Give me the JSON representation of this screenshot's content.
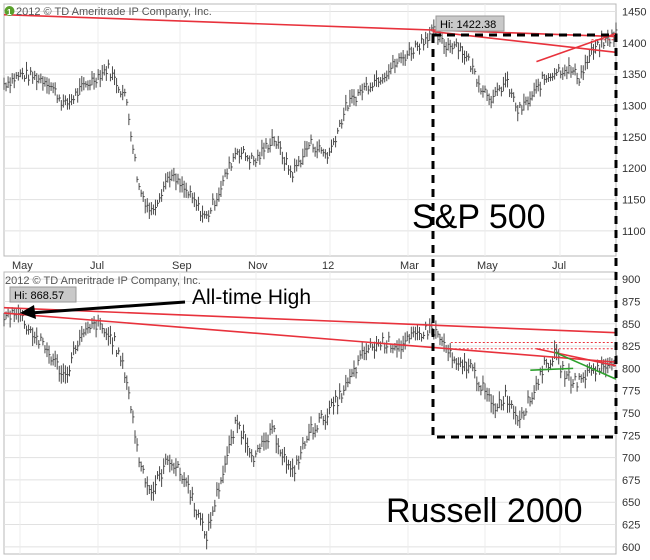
{
  "chart_data": [
    {
      "type": "ohlc",
      "series_name": "S&P 500",
      "copyright": "2012 © TD Ameritrade IP Company, Inc.",
      "hi_label": "Hi: 1422.38",
      "y_ticks": [
        1100,
        1150,
        1200,
        1250,
        1300,
        1350,
        1400,
        1450
      ],
      "ylim": [
        1060,
        1462
      ],
      "x_ticks": [
        "May",
        "Jul",
        "Sep",
        "Nov",
        "12",
        "Mar",
        "May",
        "Jul"
      ],
      "trend_lines": [
        {
          "color": "#e8323c",
          "from": [
            0,
            1445
          ],
          "to": [
            1,
            1410
          ]
        },
        {
          "color": "#e8323c",
          "from": [
            0.7,
            1418
          ],
          "to": [
            1,
            1385
          ]
        },
        {
          "color": "#e8323c",
          "from": [
            0.87,
            1370
          ],
          "to": [
            1,
            1415
          ]
        },
        {
          "color": "#e8323c",
          "style": "dotted",
          "from": [
            0.96,
            1405
          ],
          "to": [
            1,
            1405
          ]
        }
      ],
      "path": [
        [
          0.0,
          1335
        ],
        [
          0.03,
          1350
        ],
        [
          0.07,
          1340
        ],
        [
          0.1,
          1300
        ],
        [
          0.13,
          1330
        ],
        [
          0.17,
          1360
        ],
        [
          0.2,
          1310
        ],
        [
          0.22,
          1170
        ],
        [
          0.24,
          1130
        ],
        [
          0.27,
          1190
        ],
        [
          0.3,
          1160
        ],
        [
          0.33,
          1120
        ],
        [
          0.35,
          1160
        ],
        [
          0.38,
          1230
        ],
        [
          0.41,
          1210
        ],
        [
          0.44,
          1250
        ],
        [
          0.47,
          1190
        ],
        [
          0.5,
          1240
        ],
        [
          0.53,
          1220
        ],
        [
          0.56,
          1300
        ],
        [
          0.59,
          1330
        ],
        [
          0.62,
          1350
        ],
        [
          0.65,
          1375
        ],
        [
          0.68,
          1400
        ],
        [
          0.7,
          1420
        ],
        [
          0.72,
          1395
        ],
        [
          0.74,
          1400
        ],
        [
          0.76,
          1370
        ],
        [
          0.78,
          1330
        ],
        [
          0.8,
          1310
        ],
        [
          0.82,
          1340
        ],
        [
          0.84,
          1290
        ],
        [
          0.86,
          1310
        ],
        [
          0.88,
          1340
        ],
        [
          0.9,
          1355
        ],
        [
          0.92,
          1360
        ],
        [
          0.94,
          1345
        ],
        [
          0.96,
          1385
        ],
        [
          0.98,
          1400
        ],
        [
          1.0,
          1415
        ]
      ]
    },
    {
      "type": "ohlc",
      "series_name": "Russell 2000",
      "copyright": "2012 © TD Ameritrade IP Company, Inc.",
      "hi_label": "Hi: 868.57",
      "y_ticks": [
        600,
        625,
        650,
        675,
        700,
        725,
        750,
        775,
        800,
        825,
        850,
        875,
        900
      ],
      "ylim": [
        592,
        908
      ],
      "trend_lines": [
        {
          "color": "#e8323c",
          "from": [
            0,
            868
          ],
          "to": [
            1,
            840
          ]
        },
        {
          "color": "#e8323c",
          "from": [
            0,
            862
          ],
          "to": [
            1,
            807
          ]
        },
        {
          "color": "#e8323c",
          "from": [
            0.87,
            822
          ],
          "to": [
            1,
            803
          ]
        },
        {
          "color": "#e8323c",
          "style": "dotted",
          "from": [
            0.73,
            829
          ],
          "to": [
            1,
            829
          ]
        },
        {
          "color": "#e8323c",
          "style": "dotted",
          "from": [
            0.73,
            822
          ],
          "to": [
            1,
            822
          ]
        },
        {
          "color": "#2ca02c",
          "from": [
            0.9,
            818
          ],
          "to": [
            1,
            788
          ]
        },
        {
          "color": "#2ca02c",
          "from": [
            0.86,
            798
          ],
          "to": [
            0.93,
            800
          ]
        }
      ],
      "path": [
        [
          0.0,
          855
        ],
        [
          0.02,
          866
        ],
        [
          0.04,
          845
        ],
        [
          0.07,
          820
        ],
        [
          0.1,
          790
        ],
        [
          0.12,
          830
        ],
        [
          0.15,
          850
        ],
        [
          0.18,
          830
        ],
        [
          0.2,
          790
        ],
        [
          0.22,
          700
        ],
        [
          0.24,
          660
        ],
        [
          0.27,
          700
        ],
        [
          0.3,
          670
        ],
        [
          0.33,
          610
        ],
        [
          0.35,
          665
        ],
        [
          0.38,
          740
        ],
        [
          0.41,
          700
        ],
        [
          0.44,
          730
        ],
        [
          0.47,
          680
        ],
        [
          0.5,
          730
        ],
        [
          0.53,
          750
        ],
        [
          0.56,
          780
        ],
        [
          0.59,
          820
        ],
        [
          0.62,
          830
        ],
        [
          0.65,
          825
        ],
        [
          0.68,
          840
        ],
        [
          0.7,
          845
        ],
        [
          0.72,
          825
        ],
        [
          0.74,
          800
        ],
        [
          0.76,
          805
        ],
        [
          0.78,
          780
        ],
        [
          0.8,
          755
        ],
        [
          0.82,
          770
        ],
        [
          0.84,
          745
        ],
        [
          0.86,
          765
        ],
        [
          0.88,
          800
        ],
        [
          0.9,
          815
        ],
        [
          0.92,
          790
        ],
        [
          0.94,
          785
        ],
        [
          0.96,
          800
        ],
        [
          0.98,
          800
        ],
        [
          1.0,
          815
        ]
      ]
    }
  ],
  "annotations": {
    "sp_label": "S&P 500",
    "russell_label": "Russell 2000",
    "ath_label": "All-time High"
  }
}
